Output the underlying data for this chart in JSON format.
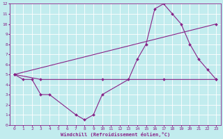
{
  "xlabel": "Windchill (Refroidissement éolien,°C)",
  "xlim": [
    -0.5,
    23.5
  ],
  "ylim": [
    0,
    12
  ],
  "xticks": [
    0,
    1,
    2,
    3,
    4,
    5,
    6,
    7,
    8,
    9,
    10,
    11,
    12,
    13,
    14,
    15,
    16,
    17,
    18,
    19,
    20,
    21,
    22,
    23
  ],
  "yticks": [
    0,
    1,
    2,
    3,
    4,
    5,
    6,
    7,
    8,
    9,
    10,
    11,
    12
  ],
  "background_color": "#c2ecee",
  "grid_color": "#ffffff",
  "line_color": "#882288",
  "lines": [
    {
      "x": [
        0,
        1,
        2,
        3,
        4,
        7,
        8,
        9,
        10,
        13,
        14,
        15,
        16,
        17,
        18,
        19,
        20,
        21,
        22,
        23
      ],
      "y": [
        5,
        4.5,
        4.5,
        3,
        3,
        1,
        0.5,
        1,
        3,
        4.5,
        6.5,
        8,
        11.5,
        12,
        11,
        10,
        8,
        6.5,
        5.5,
        4.5
      ]
    },
    {
      "x": [
        0,
        23
      ],
      "y": [
        5,
        10
      ]
    },
    {
      "x": [
        0,
        3,
        10,
        17,
        23
      ],
      "y": [
        5,
        4.5,
        4.5,
        4.5,
        4.5
      ]
    }
  ]
}
